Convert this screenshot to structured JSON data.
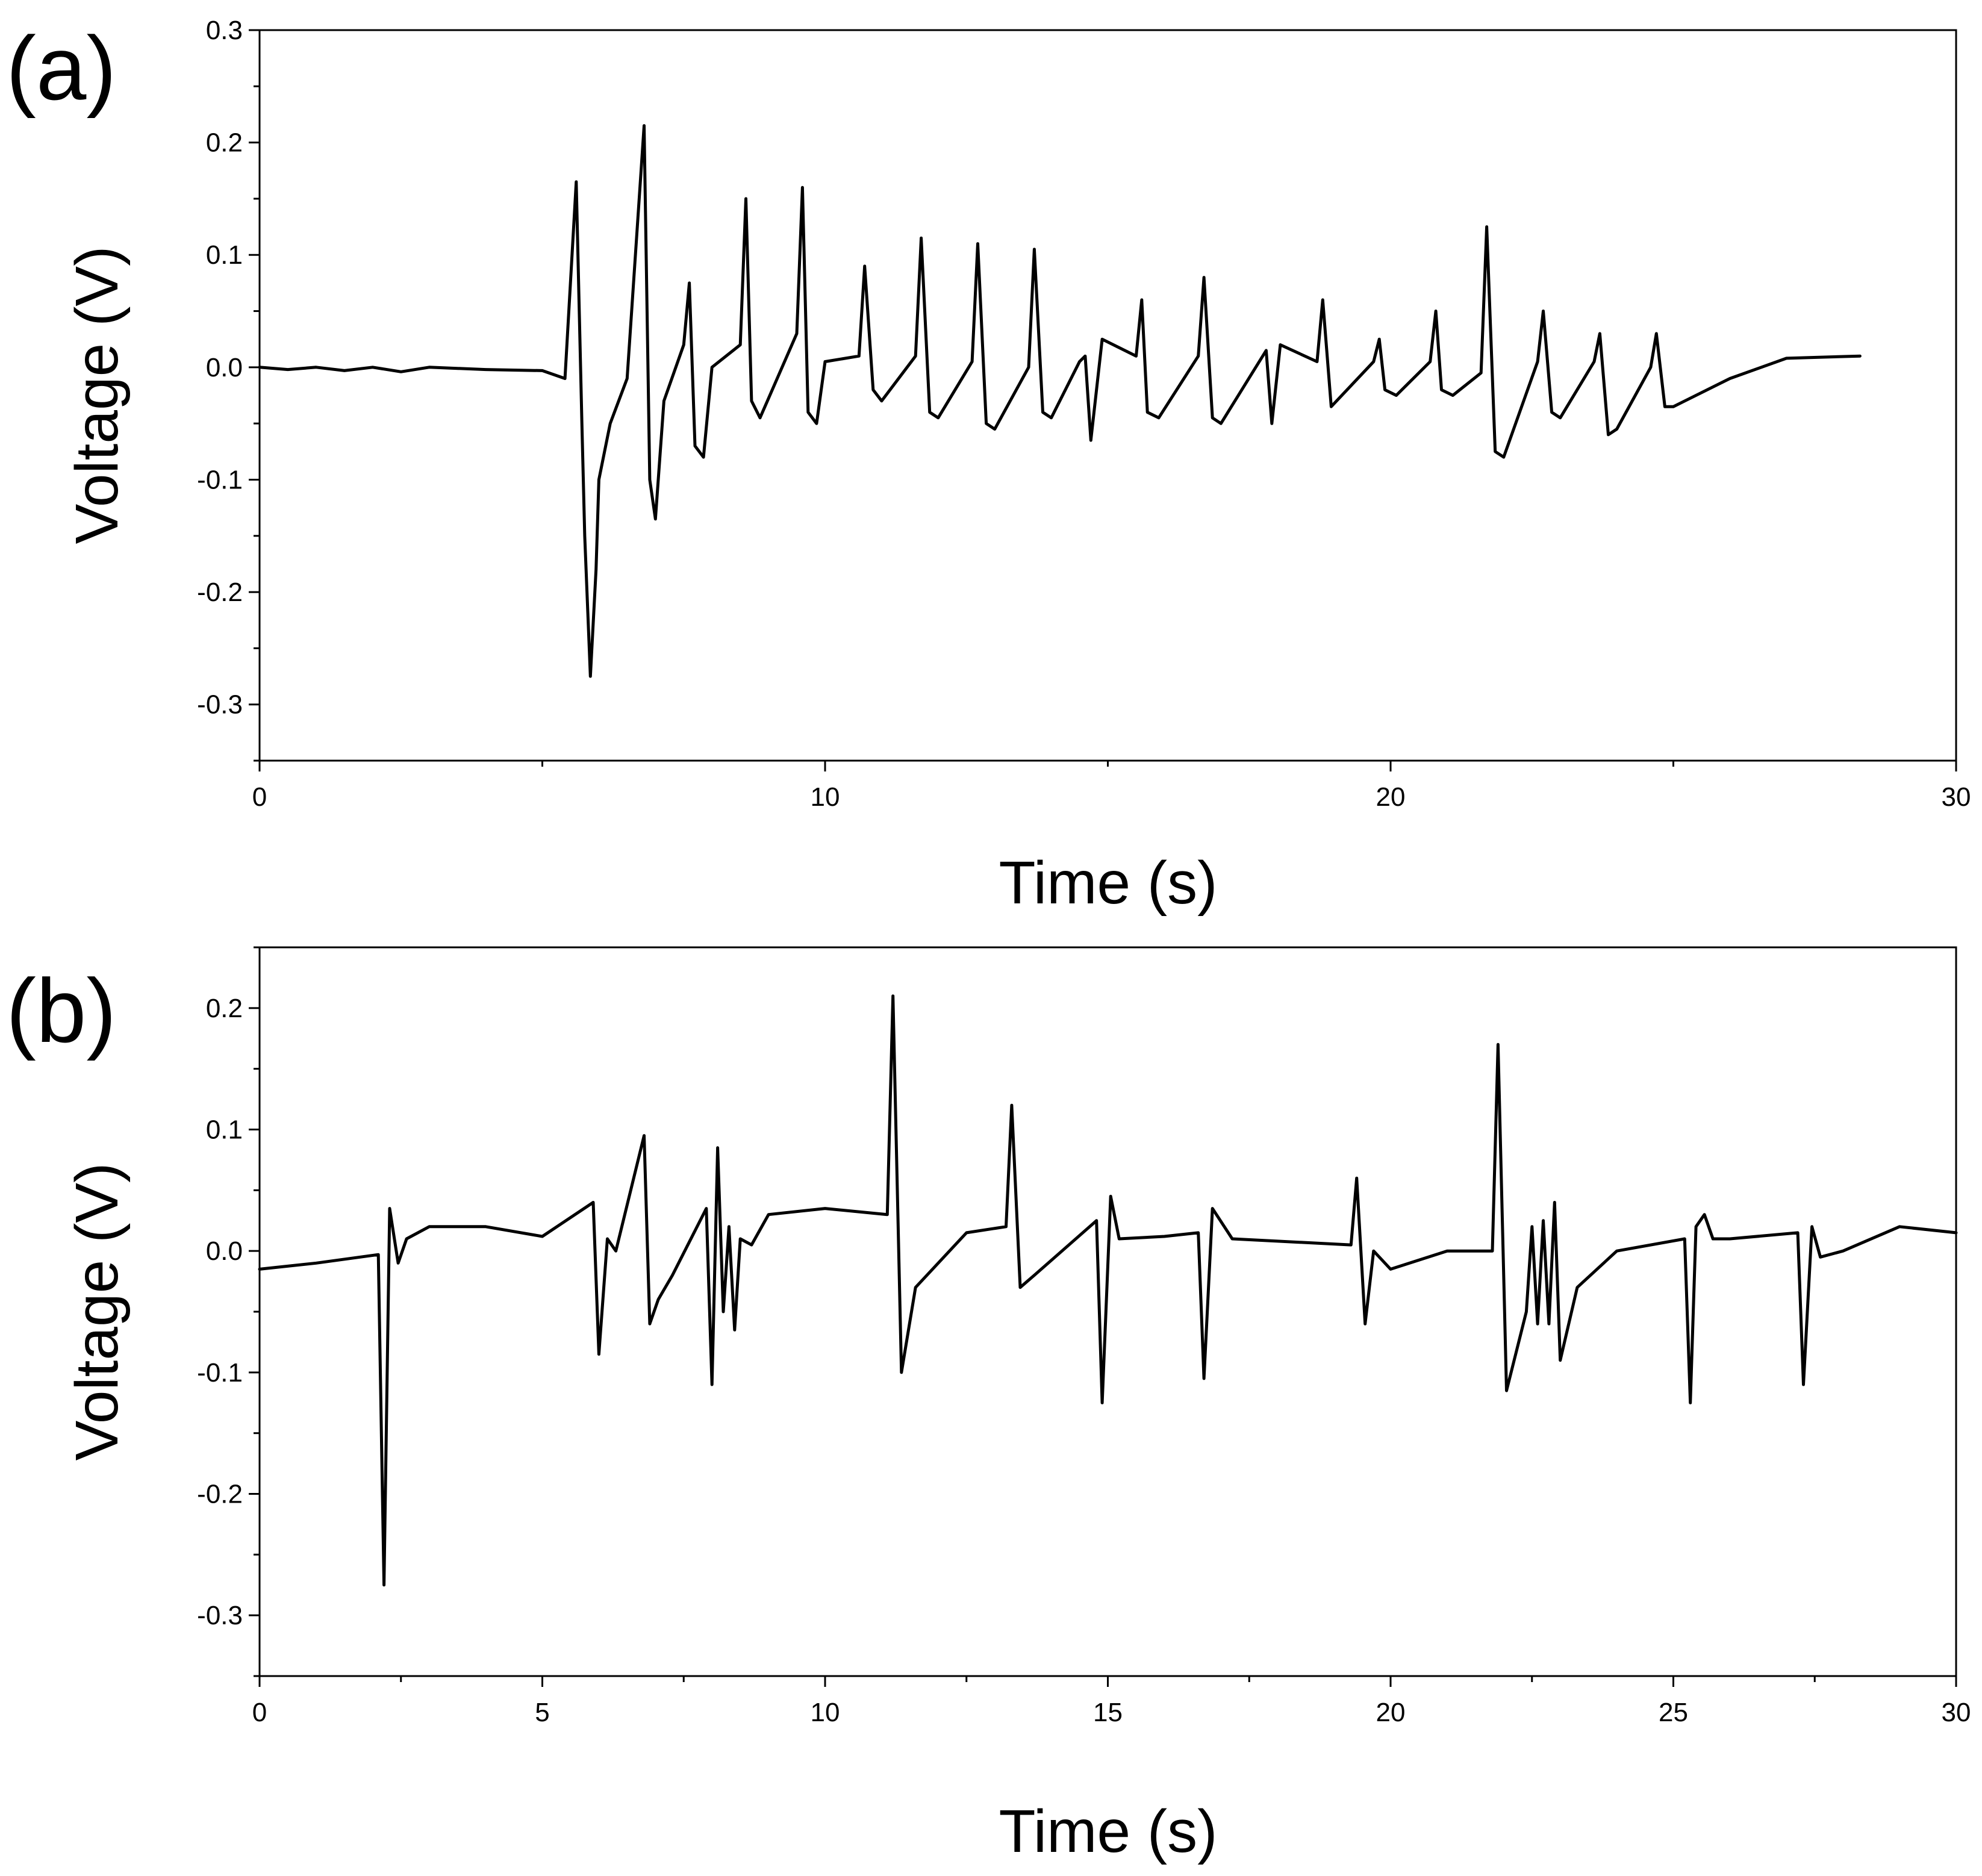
{
  "chart_data": [
    {
      "type": "line",
      "panel_label": "(a)",
      "xlabel": "Time (s)",
      "ylabel": "Voltage (V)",
      "xlim": [
        0,
        30
      ],
      "ylim": [
        -0.35,
        0.3
      ],
      "xticks": [
        0,
        10,
        20,
        30
      ],
      "xtick_labels": [
        "0",
        "10",
        "20",
        "30"
      ],
      "x_minor_ticks": [
        5,
        15,
        25
      ],
      "yticks": [
        -0.3,
        -0.2,
        -0.1,
        0.0,
        0.1,
        0.2,
        0.3
      ],
      "ytick_labels": [
        "-0.3",
        "-0.2",
        "-0.1",
        "0.0",
        "0.1",
        "0.2",
        "0.3"
      ],
      "y_minor_ticks": [
        -0.35,
        -0.25,
        -0.15,
        -0.05,
        0.05,
        0.15,
        0.25
      ],
      "series": [
        {
          "name": "Voltage",
          "x": [
            0,
            0.5,
            1.0,
            1.5,
            2.0,
            2.5,
            3.0,
            4.0,
            5.0,
            5.4,
            5.6,
            5.7,
            5.75,
            5.85,
            5.95,
            6.0,
            6.2,
            6.5,
            6.8,
            6.9,
            7.0,
            7.15,
            7.5,
            7.6,
            7.7,
            7.85,
            8.0,
            8.5,
            8.6,
            8.7,
            8.85,
            9.5,
            9.6,
            9.7,
            9.85,
            10.0,
            10.6,
            10.7,
            10.85,
            11.0,
            11.6,
            11.7,
            11.85,
            12.0,
            12.6,
            12.7,
            12.85,
            13.0,
            13.6,
            13.7,
            13.85,
            14.0,
            14.5,
            14.6,
            14.7,
            14.9,
            15.5,
            15.6,
            15.7,
            15.9,
            16.6,
            16.7,
            16.85,
            17.0,
            17.8,
            17.9,
            18.05,
            18.7,
            18.8,
            18.95,
            19.7,
            19.8,
            19.9,
            20.1,
            20.7,
            20.8,
            20.9,
            21.1,
            21.6,
            21.7,
            21.85,
            22.0,
            22.6,
            22.7,
            22.85,
            23.0,
            23.6,
            23.7,
            23.85,
            24.0,
            24.6,
            24.7,
            24.85,
            25.0,
            26.0,
            27.0,
            28.3
          ],
          "y": [
            0.0,
            -0.002,
            0.0,
            -0.003,
            0.0,
            -0.004,
            0.0,
            -0.002,
            -0.003,
            -0.01,
            0.165,
            -0.05,
            -0.15,
            -0.275,
            -0.18,
            -0.1,
            -0.05,
            -0.01,
            0.215,
            -0.1,
            -0.135,
            -0.03,
            0.02,
            0.075,
            -0.07,
            -0.08,
            0.0,
            0.02,
            0.15,
            -0.03,
            -0.045,
            0.03,
            0.16,
            -0.04,
            -0.05,
            0.005,
            0.01,
            0.09,
            -0.02,
            -0.03,
            0.01,
            0.115,
            -0.04,
            -0.045,
            0.005,
            0.11,
            -0.05,
            -0.055,
            0.0,
            0.105,
            -0.04,
            -0.045,
            0.005,
            0.01,
            -0.065,
            0.025,
            0.01,
            0.06,
            -0.04,
            -0.045,
            0.01,
            0.08,
            -0.045,
            -0.05,
            0.015,
            -0.05,
            0.02,
            0.005,
            0.06,
            -0.035,
            0.005,
            0.025,
            -0.02,
            -0.025,
            0.005,
            0.05,
            -0.02,
            -0.025,
            -0.005,
            0.125,
            -0.075,
            -0.08,
            0.005,
            0.05,
            -0.04,
            -0.045,
            0.005,
            0.03,
            -0.06,
            -0.055,
            0.0,
            0.03,
            -0.035,
            -0.035,
            -0.01,
            0.008,
            0.01
          ]
        }
      ]
    },
    {
      "type": "line",
      "panel_label": "(b)",
      "xlabel": "Time (s)",
      "ylabel": "Voltage (V)",
      "xlim": [
        0,
        30
      ],
      "ylim": [
        -0.35,
        0.25
      ],
      "xticks": [
        0,
        5,
        10,
        15,
        20,
        25,
        30
      ],
      "xtick_labels": [
        "0",
        "5",
        "10",
        "15",
        "20",
        "25",
        "30"
      ],
      "x_minor_ticks": [
        2.5,
        7.5,
        12.5,
        17.5,
        22.5,
        27.5
      ],
      "yticks": [
        -0.3,
        -0.2,
        -0.1,
        0.0,
        0.1,
        0.2
      ],
      "ytick_labels": [
        "-0.3",
        "-0.2",
        "-0.1",
        "0.0",
        "0.1",
        "0.2"
      ],
      "y_minor_ticks": [
        -0.35,
        -0.25,
        -0.15,
        -0.05,
        0.05,
        0.15,
        0.25
      ],
      "series": [
        {
          "name": "Voltage",
          "x": [
            0,
            1.0,
            2.1,
            2.2,
            2.3,
            2.45,
            2.6,
            3.0,
            4.0,
            5.0,
            5.9,
            6.0,
            6.15,
            6.3,
            6.8,
            6.9,
            7.05,
            7.3,
            7.9,
            8.0,
            8.1,
            8.2,
            8.3,
            8.4,
            8.5,
            8.7,
            9.0,
            10.0,
            11.1,
            11.2,
            11.35,
            11.6,
            12.5,
            13.2,
            13.3,
            13.45,
            13.7,
            14.8,
            14.9,
            15.05,
            15.2,
            16.0,
            16.6,
            16.7,
            16.85,
            17.2,
            19.3,
            19.4,
            19.55,
            19.7,
            20.0,
            21.0,
            21.8,
            21.9,
            22.05,
            22.4,
            22.5,
            22.6,
            22.7,
            22.8,
            22.9,
            23.0,
            23.3,
            24.0,
            25.2,
            25.3,
            25.4,
            25.55,
            25.7,
            26.0,
            27.2,
            27.3,
            27.45,
            27.6,
            28.0,
            29.0,
            30.0
          ],
          "y": [
            -0.015,
            -0.01,
            -0.003,
            -0.275,
            0.035,
            -0.01,
            0.01,
            0.02,
            0.02,
            0.012,
            0.04,
            -0.085,
            0.01,
            0.0,
            0.095,
            -0.06,
            -0.04,
            -0.02,
            0.035,
            -0.11,
            0.085,
            -0.05,
            0.02,
            -0.065,
            0.01,
            0.005,
            0.03,
            0.035,
            0.03,
            0.21,
            -0.1,
            -0.03,
            0.015,
            0.02,
            0.12,
            -0.03,
            -0.02,
            0.025,
            -0.125,
            0.045,
            0.01,
            0.012,
            0.015,
            -0.105,
            0.035,
            0.01,
            0.005,
            0.06,
            -0.06,
            0.0,
            -0.015,
            0.0,
            0.0,
            0.17,
            -0.115,
            -0.05,
            0.02,
            -0.06,
            0.025,
            -0.06,
            0.04,
            -0.09,
            -0.03,
            0.0,
            0.01,
            -0.125,
            0.02,
            0.03,
            0.01,
            0.01,
            0.015,
            -0.11,
            0.02,
            -0.005,
            0.0,
            0.02,
            0.015
          ]
        }
      ]
    }
  ]
}
